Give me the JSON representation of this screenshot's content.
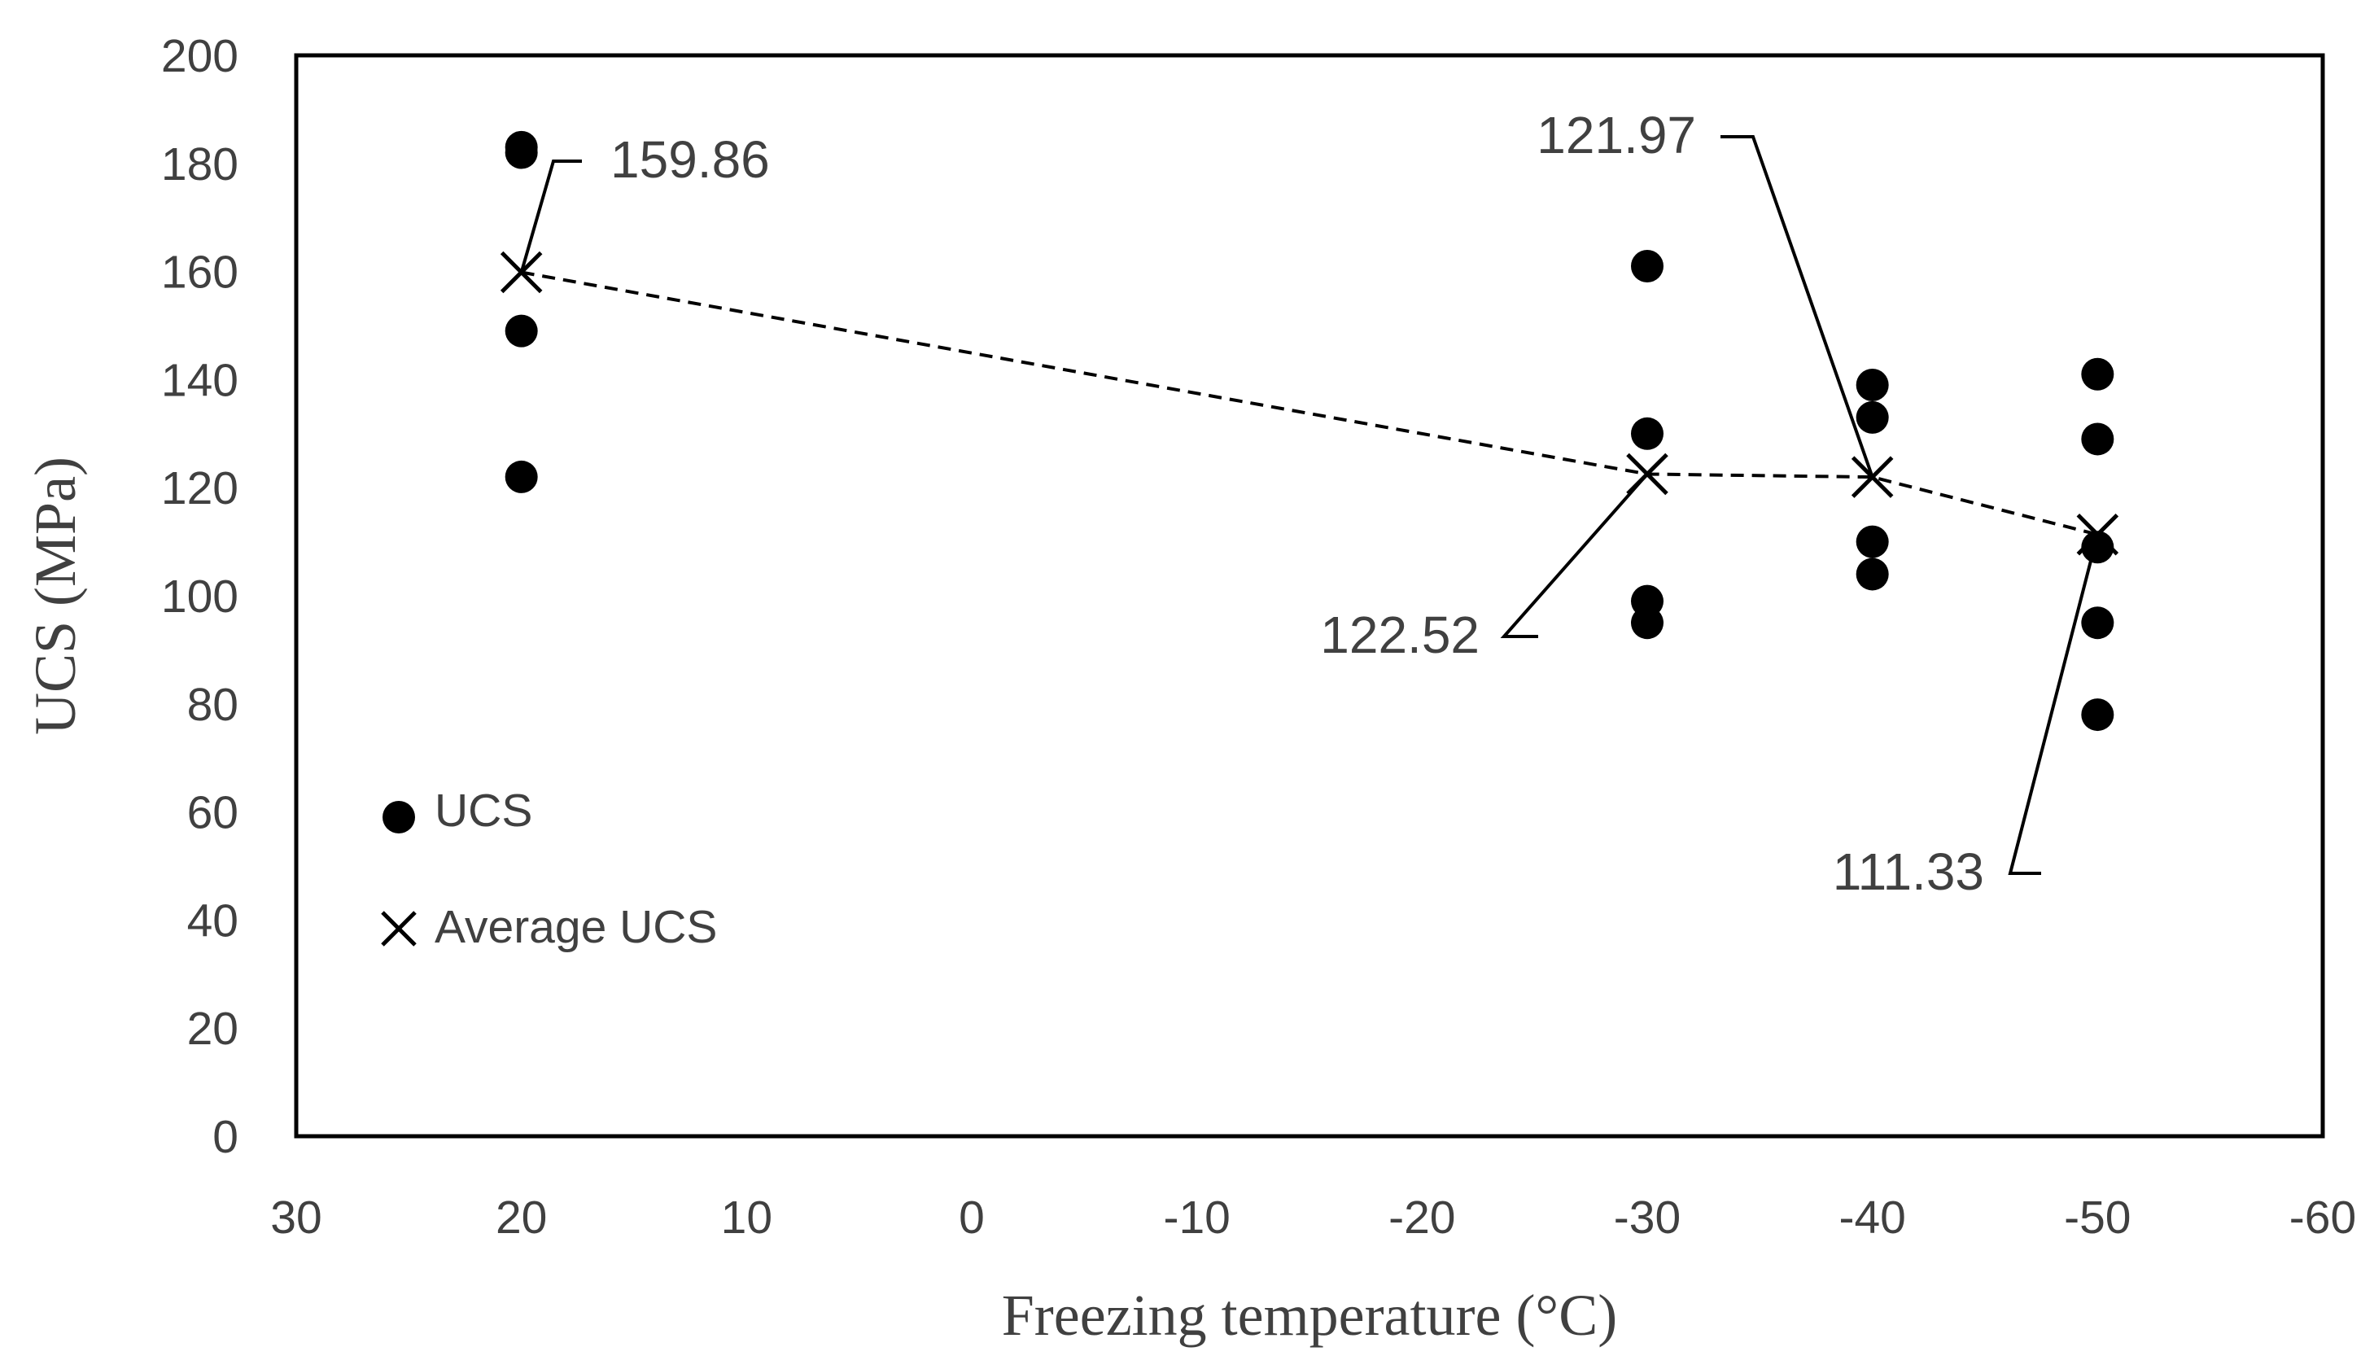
{
  "chart_data": {
    "type": "scatter",
    "title": "",
    "xlabel": "Freezing temperature (°C)",
    "ylabel": "UCS (MPa)",
    "xlim": [
      30,
      -60
    ],
    "ylim": [
      0,
      200
    ],
    "x_ticks": [
      30,
      20,
      10,
      0,
      -10,
      -20,
      -30,
      -40,
      -50,
      -60
    ],
    "y_ticks": [
      0,
      20,
      40,
      60,
      80,
      100,
      120,
      140,
      160,
      180,
      200
    ],
    "grid": false,
    "legend_position": "left-middle",
    "series": [
      {
        "name": "UCS",
        "marker": "circle",
        "points": [
          {
            "x": 20,
            "y": 183
          },
          {
            "x": 20,
            "y": 182
          },
          {
            "x": 20,
            "y": 149
          },
          {
            "x": 20,
            "y": 122
          },
          {
            "x": -30,
            "y": 161
          },
          {
            "x": -30,
            "y": 130
          },
          {
            "x": -30,
            "y": 99
          },
          {
            "x": -30,
            "y": 95
          },
          {
            "x": -40,
            "y": 139
          },
          {
            "x": -40,
            "y": 133
          },
          {
            "x": -40,
            "y": 110
          },
          {
            "x": -40,
            "y": 104
          },
          {
            "x": -50,
            "y": 141
          },
          {
            "x": -50,
            "y": 129
          },
          {
            "x": -50,
            "y": 109
          },
          {
            "x": -50,
            "y": 95
          },
          {
            "x": -50,
            "y": 78
          }
        ]
      },
      {
        "name": "Average UCS",
        "marker": "x",
        "line": "dashed",
        "points": [
          {
            "x": 20,
            "y": 159.86
          },
          {
            "x": -30,
            "y": 122.52
          },
          {
            "x": -40,
            "y": 121.97
          },
          {
            "x": -50,
            "y": 111.33
          }
        ]
      }
    ],
    "annotations": [
      {
        "text": "159.86",
        "x": 20,
        "y": 159.86
      },
      {
        "text": "122.52",
        "x": -30,
        "y": 122.52
      },
      {
        "text": "121.97",
        "x": -40,
        "y": 121.97
      },
      {
        "text": "111.33",
        "x": -50,
        "y": 111.33
      }
    ],
    "colors": {
      "marker": "#000000",
      "axis": "#000000",
      "text": "#404040"
    }
  }
}
